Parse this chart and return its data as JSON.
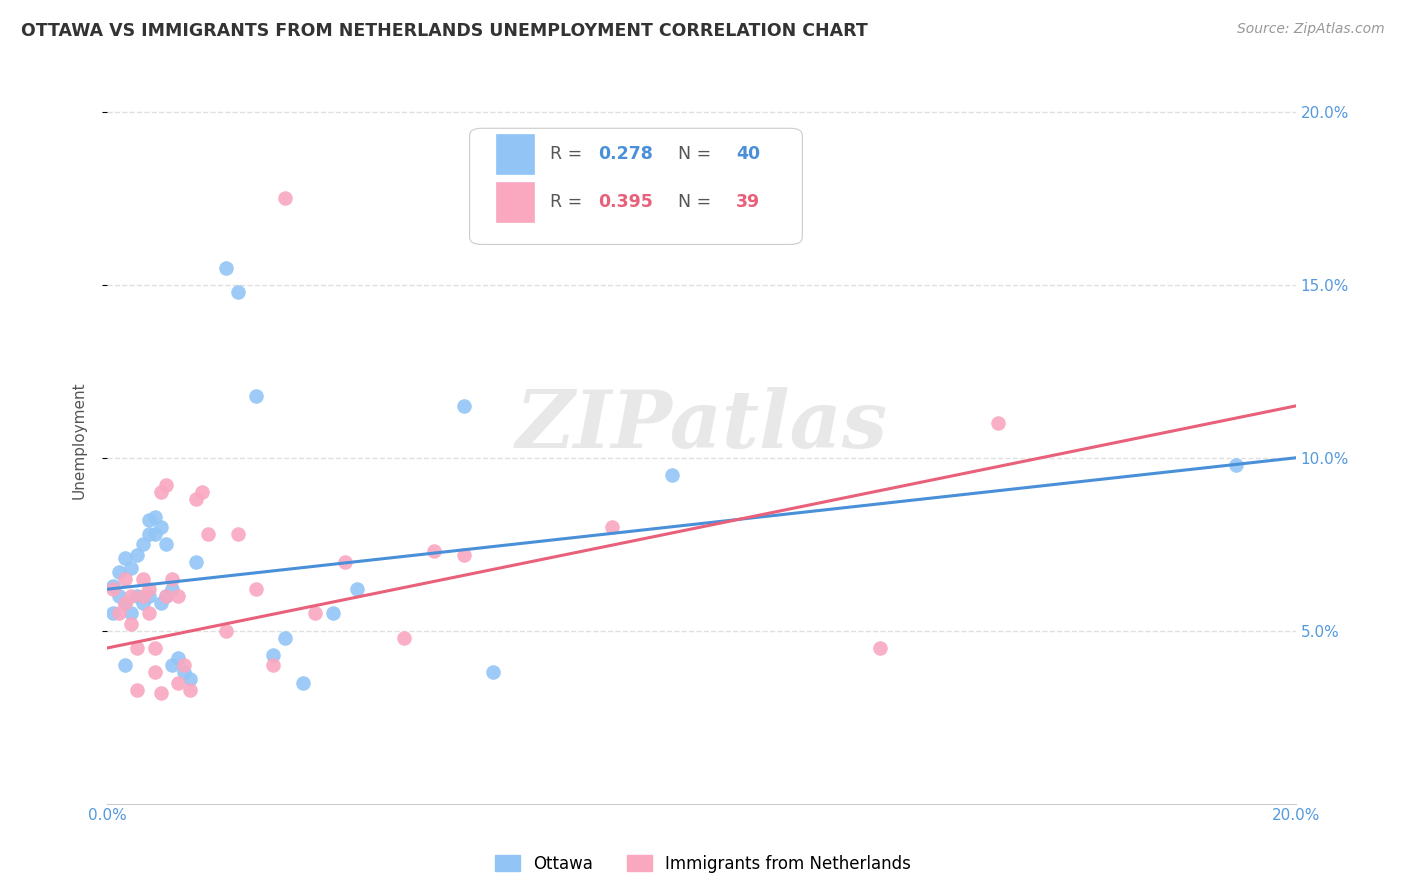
{
  "title": "OTTAWA VS IMMIGRANTS FROM NETHERLANDS UNEMPLOYMENT CORRELATION CHART",
  "source": "Source: ZipAtlas.com",
  "ylabel_label": "Unemployment",
  "xlim": [
    0.0,
    0.2
  ],
  "ylim": [
    0.0,
    0.21
  ],
  "xticks": [
    0.0,
    0.05,
    0.1,
    0.15,
    0.2
  ],
  "yticks": [
    0.05,
    0.1,
    0.15,
    0.2
  ],
  "xtick_labels": [
    "0.0%",
    "",
    "",
    "",
    "20.0%"
  ],
  "ytick_labels_right": [
    "5.0%",
    "10.0%",
    "15.0%",
    "20.0%"
  ],
  "grid_color": "#e0e0e0",
  "background_color": "#ffffff",
  "ottawa_color": "#92c5f5",
  "netherlands_color": "#f9a8c0",
  "ottawa_line_color": "#4a90d9",
  "netherlands_line_color": "#e8607a",
  "ottawa_R": "0.278",
  "ottawa_N": "40",
  "netherlands_R": "0.395",
  "netherlands_N": "39",
  "legend_label_1": "Ottawa",
  "legend_label_2": "Immigrants from Netherlands",
  "watermark": "ZIPatlas",
  "ottawa_x": [
    0.001,
    0.002,
    0.002,
    0.003,
    0.003,
    0.004,
    0.004,
    0.005,
    0.005,
    0.006,
    0.006,
    0.007,
    0.007,
    0.007,
    0.008,
    0.008,
    0.009,
    0.009,
    0.01,
    0.01,
    0.011,
    0.011,
    0.012,
    0.013,
    0.014,
    0.015,
    0.02,
    0.022,
    0.025,
    0.028,
    0.03,
    0.033,
    0.038,
    0.042,
    0.06,
    0.065,
    0.095,
    0.19,
    0.001,
    0.003
  ],
  "ottawa_y": [
    0.063,
    0.06,
    0.067,
    0.058,
    0.071,
    0.055,
    0.068,
    0.06,
    0.072,
    0.058,
    0.075,
    0.082,
    0.078,
    0.06,
    0.083,
    0.078,
    0.08,
    0.058,
    0.075,
    0.06,
    0.04,
    0.062,
    0.042,
    0.038,
    0.036,
    0.07,
    0.155,
    0.148,
    0.118,
    0.043,
    0.048,
    0.035,
    0.055,
    0.062,
    0.115,
    0.038,
    0.095,
    0.098,
    0.055,
    0.04
  ],
  "netherlands_x": [
    0.001,
    0.002,
    0.003,
    0.003,
    0.004,
    0.004,
    0.005,
    0.006,
    0.006,
    0.007,
    0.007,
    0.008,
    0.008,
    0.009,
    0.01,
    0.01,
    0.011,
    0.012,
    0.013,
    0.014,
    0.015,
    0.016,
    0.017,
    0.02,
    0.022,
    0.025,
    0.028,
    0.03,
    0.035,
    0.04,
    0.05,
    0.055,
    0.06,
    0.085,
    0.13,
    0.15,
    0.005,
    0.009,
    0.012
  ],
  "netherlands_y": [
    0.062,
    0.055,
    0.058,
    0.065,
    0.052,
    0.06,
    0.045,
    0.06,
    0.065,
    0.055,
    0.062,
    0.038,
    0.045,
    0.09,
    0.092,
    0.06,
    0.065,
    0.06,
    0.04,
    0.033,
    0.088,
    0.09,
    0.078,
    0.05,
    0.078,
    0.062,
    0.04,
    0.175,
    0.055,
    0.07,
    0.048,
    0.073,
    0.072,
    0.08,
    0.045,
    0.11,
    0.033,
    0.032,
    0.035
  ]
}
